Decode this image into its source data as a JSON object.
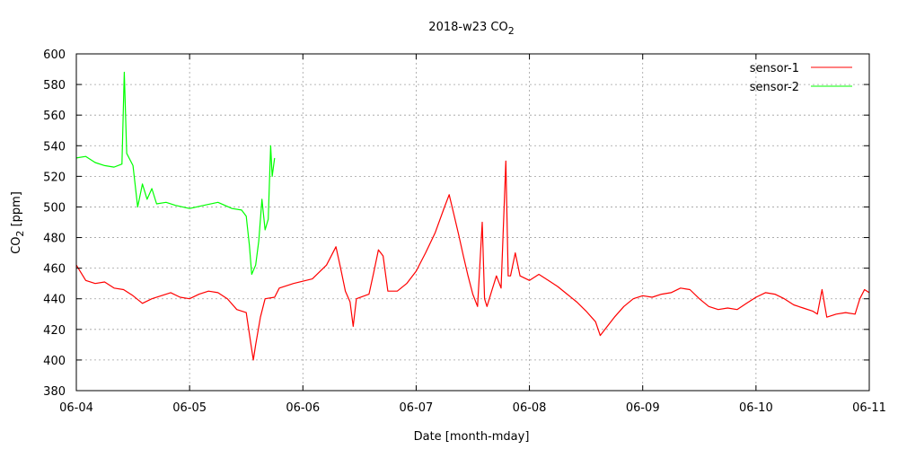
{
  "chart_data": {
    "type": "line",
    "title": "2018-w23 CO",
    "title_sub": "2",
    "xlabel": "Date [month-mday]",
    "ylabel_parts": [
      "CO",
      "2",
      " [ppm]"
    ],
    "xlim": [
      "2018-06-04",
      "2018-06-11"
    ],
    "ylim": [
      380,
      600
    ],
    "grid": true,
    "legend_position": "top-right",
    "x_ticks": [
      "06-04",
      "06-05",
      "06-06",
      "06-07",
      "06-08",
      "06-09",
      "06-10",
      "06-11"
    ],
    "y_ticks": [
      380,
      400,
      420,
      440,
      460,
      480,
      500,
      520,
      540,
      560,
      580,
      600
    ],
    "series": [
      {
        "name": "sensor-1",
        "color": "#ff0000",
        "points": [
          [
            "2018-06-04 00:00",
            462
          ],
          [
            "2018-06-04 02:00",
            452
          ],
          [
            "2018-06-04 04:00",
            450
          ],
          [
            "2018-06-04 06:00",
            451
          ],
          [
            "2018-06-04 08:00",
            447
          ],
          [
            "2018-06-04 10:00",
            446
          ],
          [
            "2018-06-04 12:00",
            442
          ],
          [
            "2018-06-04 14:00",
            437
          ],
          [
            "2018-06-04 16:00",
            440
          ],
          [
            "2018-06-04 18:00",
            442
          ],
          [
            "2018-06-04 20:00",
            444
          ],
          [
            "2018-06-04 22:00",
            441
          ],
          [
            "2018-06-05 00:00",
            440
          ],
          [
            "2018-06-05 02:00",
            443
          ],
          [
            "2018-06-05 04:00",
            445
          ],
          [
            "2018-06-05 06:00",
            444
          ],
          [
            "2018-06-05 08:00",
            440
          ],
          [
            "2018-06-05 10:00",
            433
          ],
          [
            "2018-06-05 12:00",
            431
          ],
          [
            "2018-06-05 13:00",
            410
          ],
          [
            "2018-06-05 13:30",
            400
          ],
          [
            "2018-06-05 14:00",
            410
          ],
          [
            "2018-06-05 15:00",
            428
          ],
          [
            "2018-06-05 16:00",
            440
          ],
          [
            "2018-06-05 18:00",
            441
          ],
          [
            "2018-06-05 19:00",
            447
          ],
          [
            "2018-06-05 22:00",
            450
          ],
          [
            "2018-06-06 02:00",
            453
          ],
          [
            "2018-06-06 05:00",
            462
          ],
          [
            "2018-06-06 07:00",
            474
          ],
          [
            "2018-06-06 08:00",
            460
          ],
          [
            "2018-06-06 09:00",
            445
          ],
          [
            "2018-06-06 10:00",
            438
          ],
          [
            "2018-06-06 10:40",
            422
          ],
          [
            "2018-06-06 11:20",
            440
          ],
          [
            "2018-06-06 14:00",
            443
          ],
          [
            "2018-06-06 15:00",
            457
          ],
          [
            "2018-06-06 16:00",
            472
          ],
          [
            "2018-06-06 17:00",
            468
          ],
          [
            "2018-06-06 18:00",
            445
          ],
          [
            "2018-06-06 20:00",
            445
          ],
          [
            "2018-06-06 22:00",
            450
          ],
          [
            "2018-06-07 00:00",
            458
          ],
          [
            "2018-06-07 02:00",
            470
          ],
          [
            "2018-06-07 04:00",
            483
          ],
          [
            "2018-06-07 06:00",
            500
          ],
          [
            "2018-06-07 07:00",
            508
          ],
          [
            "2018-06-07 08:00",
            495
          ],
          [
            "2018-06-07 09:00",
            482
          ],
          [
            "2018-06-07 10:00",
            468
          ],
          [
            "2018-06-07 11:00",
            455
          ],
          [
            "2018-06-07 12:00",
            443
          ],
          [
            "2018-06-07 13:00",
            435
          ],
          [
            "2018-06-07 14:00",
            490
          ],
          [
            "2018-06-07 14:30",
            440
          ],
          [
            "2018-06-07 15:00",
            435
          ],
          [
            "2018-06-07 16:00",
            445
          ],
          [
            "2018-06-07 17:00",
            455
          ],
          [
            "2018-06-07 18:00",
            447
          ],
          [
            "2018-06-07 19:00",
            530
          ],
          [
            "2018-06-07 19:30",
            455
          ],
          [
            "2018-06-07 20:00",
            455
          ],
          [
            "2018-06-07 21:00",
            470
          ],
          [
            "2018-06-07 22:00",
            455
          ],
          [
            "2018-06-08 00:00",
            452
          ],
          [
            "2018-06-08 02:00",
            456
          ],
          [
            "2018-06-08 04:00",
            452
          ],
          [
            "2018-06-08 06:00",
            448
          ],
          [
            "2018-06-08 08:00",
            443
          ],
          [
            "2018-06-08 10:00",
            438
          ],
          [
            "2018-06-08 12:00",
            432
          ],
          [
            "2018-06-08 14:00",
            425
          ],
          [
            "2018-06-08 15:00",
            416
          ],
          [
            "2018-06-08 16:00",
            420
          ],
          [
            "2018-06-08 18:00",
            428
          ],
          [
            "2018-06-08 20:00",
            435
          ],
          [
            "2018-06-08 22:00",
            440
          ],
          [
            "2018-06-09 00:00",
            442
          ],
          [
            "2018-06-09 02:00",
            441
          ],
          [
            "2018-06-09 04:00",
            443
          ],
          [
            "2018-06-09 06:00",
            444
          ],
          [
            "2018-06-09 08:00",
            447
          ],
          [
            "2018-06-09 10:00",
            446
          ],
          [
            "2018-06-09 12:00",
            440
          ],
          [
            "2018-06-09 14:00",
            435
          ],
          [
            "2018-06-09 16:00",
            433
          ],
          [
            "2018-06-09 18:00",
            434
          ],
          [
            "2018-06-09 20:00",
            433
          ],
          [
            "2018-06-09 22:00",
            437
          ],
          [
            "2018-06-10 00:00",
            441
          ],
          [
            "2018-06-10 02:00",
            444
          ],
          [
            "2018-06-10 04:00",
            443
          ],
          [
            "2018-06-10 06:00",
            440
          ],
          [
            "2018-06-10 08:00",
            436
          ],
          [
            "2018-06-10 10:00",
            434
          ],
          [
            "2018-06-10 12:00",
            432
          ],
          [
            "2018-06-10 13:00",
            430
          ],
          [
            "2018-06-10 14:00",
            446
          ],
          [
            "2018-06-10 15:00",
            428
          ],
          [
            "2018-06-10 17:00",
            430
          ],
          [
            "2018-06-10 19:00",
            431
          ],
          [
            "2018-06-10 21:00",
            430
          ],
          [
            "2018-06-10 22:00",
            440
          ],
          [
            "2018-06-10 23:00",
            446
          ],
          [
            "2018-06-11 00:00",
            444
          ]
        ]
      },
      {
        "name": "sensor-2",
        "color": "#00ff00",
        "points": [
          [
            "2018-06-04 00:00",
            532
          ],
          [
            "2018-06-04 02:00",
            533
          ],
          [
            "2018-06-04 04:00",
            529
          ],
          [
            "2018-06-04 06:00",
            527
          ],
          [
            "2018-06-04 08:00",
            526
          ],
          [
            "2018-06-04 09:40",
            528
          ],
          [
            "2018-06-04 10:10",
            588
          ],
          [
            "2018-06-04 10:40",
            535
          ],
          [
            "2018-06-04 12:00",
            527
          ],
          [
            "2018-06-04 13:00",
            500
          ],
          [
            "2018-06-04 14:00",
            515
          ],
          [
            "2018-06-04 15:00",
            505
          ],
          [
            "2018-06-04 16:00",
            512
          ],
          [
            "2018-06-04 17:00",
            502
          ],
          [
            "2018-06-04 19:00",
            503
          ],
          [
            "2018-06-04 21:00",
            501
          ],
          [
            "2018-06-05 00:00",
            499
          ],
          [
            "2018-06-05 03:00",
            501
          ],
          [
            "2018-06-05 06:00",
            503
          ],
          [
            "2018-06-05 09:00",
            499
          ],
          [
            "2018-06-05 11:00",
            498
          ],
          [
            "2018-06-05 12:00",
            494
          ],
          [
            "2018-06-05 12:40",
            475
          ],
          [
            "2018-06-05 13:10",
            456
          ],
          [
            "2018-06-05 14:00",
            462
          ],
          [
            "2018-06-05 14:40",
            478
          ],
          [
            "2018-06-05 15:20",
            505
          ],
          [
            "2018-06-05 16:00",
            485
          ],
          [
            "2018-06-05 16:40",
            492
          ],
          [
            "2018-06-05 17:10",
            540
          ],
          [
            "2018-06-05 17:30",
            520
          ],
          [
            "2018-06-05 18:00",
            532
          ]
        ]
      }
    ]
  }
}
